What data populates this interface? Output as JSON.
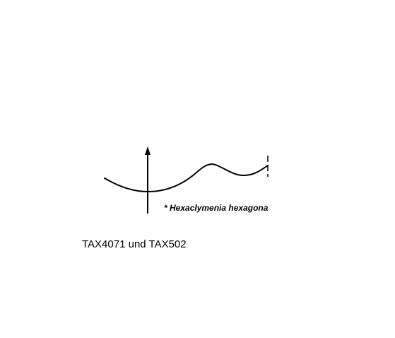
{
  "diagram": {
    "species_label": "* Hexaclymenia hexagona",
    "taxa_label": "TAX4071 und TAX502",
    "line_color": "#000000"
  }
}
